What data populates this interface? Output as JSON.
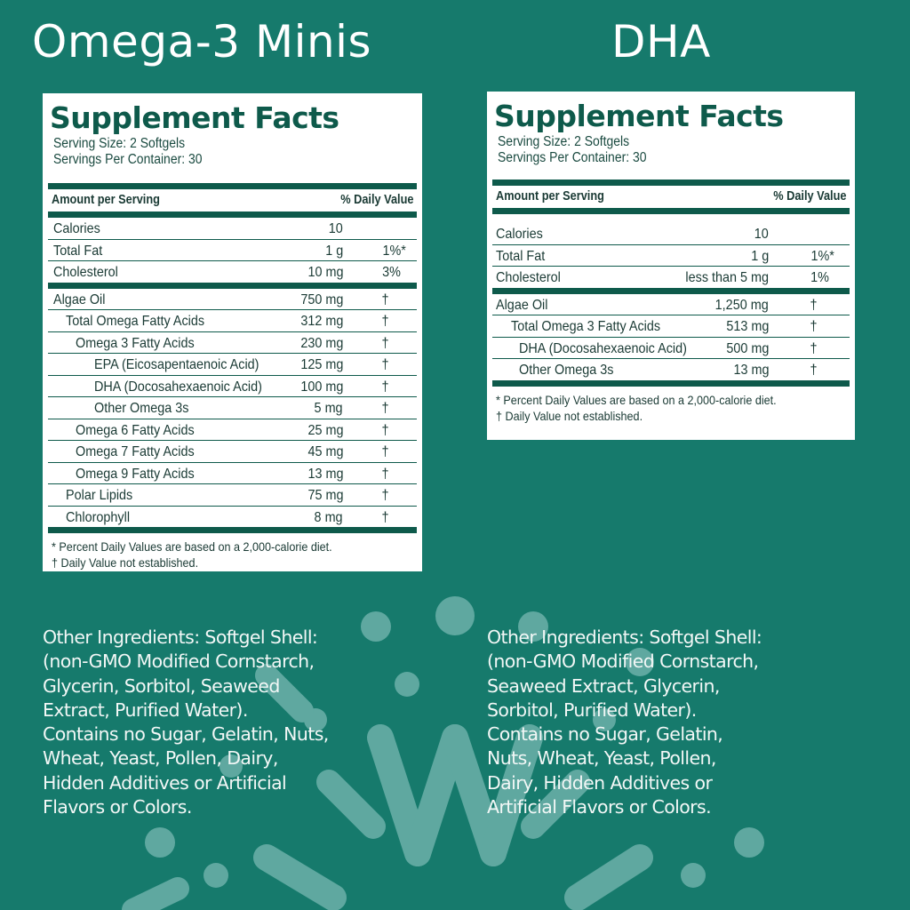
{
  "colors": {
    "background": "#167a6c",
    "label_text": "#0e5a4b",
    "decor": "#5fa8a0"
  },
  "left": {
    "product_title": "Omega-3 Minis",
    "facts": {
      "title": "Supplement Facts",
      "serving_size": "Serving Size: 2 Softgels",
      "servings_per_container": "Servings Per Container: 30",
      "amount_header": "Amount per Serving",
      "dv_header": "% Daily Value",
      "group1": [
        {
          "name": "Calories",
          "amount": "10",
          "dv": "",
          "indent": 0
        },
        {
          "name": "Total Fat",
          "amount": "1 g",
          "dv": "1%*",
          "indent": 0
        },
        {
          "name": "Cholesterol",
          "amount": "10 mg",
          "dv": "3%",
          "indent": 0
        }
      ],
      "group2": [
        {
          "name": "Algae Oil",
          "amount": "750 mg",
          "dv": "†",
          "indent": 0
        },
        {
          "name": "Total Omega Fatty Acids",
          "amount": "312 mg",
          "dv": "†",
          "indent": 1
        },
        {
          "name": "Omega 3 Fatty Acids",
          "amount": "230 mg",
          "dv": "†",
          "indent": 2
        },
        {
          "name": "EPA (Eicosapentaenoic Acid)",
          "amount": "125 mg",
          "dv": "†",
          "indent": 3
        },
        {
          "name": "DHA (Docosahexaenoic Acid)",
          "amount": "100 mg",
          "dv": "†",
          "indent": 3
        },
        {
          "name": "Other Omega 3s",
          "amount": "5 mg",
          "dv": "†",
          "indent": 3
        },
        {
          "name": "Omega 6 Fatty Acids",
          "amount": "25 mg",
          "dv": "†",
          "indent": 2
        },
        {
          "name": "Omega 7 Fatty Acids",
          "amount": "45 mg",
          "dv": "†",
          "indent": 2
        },
        {
          "name": "Omega 9 Fatty Acids",
          "amount": "13 mg",
          "dv": "†",
          "indent": 2
        },
        {
          "name": "Polar Lipids",
          "amount": "75 mg",
          "dv": "†",
          "indent": 1
        },
        {
          "name": "Chlorophyll",
          "amount": "8 mg",
          "dv": "†",
          "indent": 1
        }
      ],
      "footnote1": "*  Percent Daily Values are based on a 2,000-calorie diet.",
      "footnote2": "† Daily Value not established."
    },
    "ingredients": [
      "Other Ingredients: Softgel Shell:",
      "(non-GMO Modified Cornstarch,",
      "Glycerin, Sorbitol, Seaweed",
      "Extract, Purified Water).",
      "Contains no Sugar, Gelatin, Nuts,",
      "Wheat, Yeast, Pollen, Dairy,",
      "Hidden Additives or Artificial",
      "Flavors or Colors."
    ]
  },
  "right": {
    "product_title": "DHA",
    "facts": {
      "title": "Supplement Facts",
      "serving_size": "Serving Size: 2 Softgels",
      "servings_per_container": "Servings Per Container: 30",
      "amount_header": "Amount per Serving",
      "dv_header": "% Daily Value",
      "group1": [
        {
          "name": "Calories",
          "amount": "10",
          "dv": "",
          "indent": 0
        },
        {
          "name": "Total Fat",
          "amount": "1 g",
          "dv": "1%*",
          "indent": 0
        },
        {
          "name": "Cholesterol",
          "amount": "less than 5 mg",
          "dv": "1%",
          "indent": 0
        }
      ],
      "group2": [
        {
          "name": "Algae Oil",
          "amount": "1,250 mg",
          "dv": "†",
          "indent": 0
        },
        {
          "name": "Total Omega 3 Fatty Acids",
          "amount": "513 mg",
          "dv": "†",
          "indent": 1
        },
        {
          "name": "DHA (Docosahexaenoic Acid)",
          "amount": "500 mg",
          "dv": "†",
          "indent": 2
        },
        {
          "name": "Other Omega 3s",
          "amount": "13 mg",
          "dv": "†",
          "indent": 2
        }
      ],
      "footnote1": "*  Percent Daily Values are based on a 2,000-calorie diet.",
      "footnote2": "† Daily Value not established."
    },
    "ingredients": [
      "Other Ingredients: Softgel Shell:",
      "(non-GMO Modified Cornstarch,",
      "Seaweed Extract, Glycerin,",
      "Sorbitol, Purified Water).",
      "Contains no Sugar, Gelatin,",
      "Nuts, Wheat, Yeast, Pollen,",
      "Dairy, Hidden Additives or",
      "Artificial Flavors or Colors."
    ]
  }
}
